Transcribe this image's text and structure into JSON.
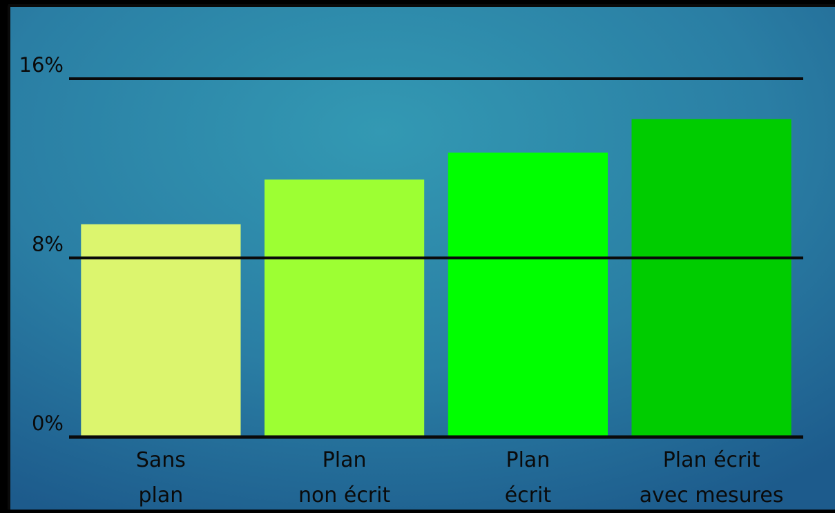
{
  "chart_data": {
    "type": "bar",
    "categories": [
      [
        "Sans",
        "plan"
      ],
      [
        "Plan",
        "non écrit"
      ],
      [
        "Plan",
        "écrit"
      ],
      [
        "Plan écrit",
        "avec mesures"
      ]
    ],
    "values": [
      9.5,
      11.5,
      12.7,
      14.2
    ],
    "bar_colors": [
      "#dcf56e",
      "#9dff33",
      "#00ff00",
      "#00cc00"
    ],
    "ylim": [
      0,
      16
    ],
    "yticks": [
      0,
      8,
      16
    ],
    "ytick_labels": [
      "0%",
      "8%",
      "16%"
    ],
    "grid": true,
    "legend": "none",
    "unit": "%"
  }
}
